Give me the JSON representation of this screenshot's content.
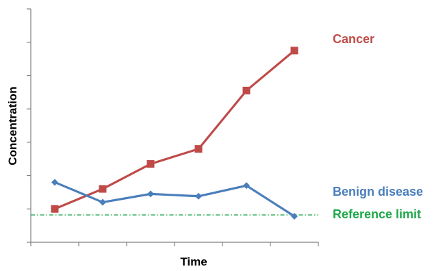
{
  "chart_data": {
    "type": "line",
    "title": "",
    "xlabel": "Time",
    "ylabel": "Concentration",
    "x": [
      1,
      2,
      3,
      4,
      5,
      6
    ],
    "xlim": [
      0.5,
      6.5
    ],
    "ylim": [
      0,
      7
    ],
    "grid": false,
    "legend": "inline labels at right",
    "series": [
      {
        "name": "Cancer",
        "color": "#be4b48",
        "marker": "square",
        "values": [
          1.0,
          1.6,
          2.35,
          2.8,
          4.55,
          5.75
        ]
      },
      {
        "name": "Benign disease",
        "color": "#4a7ebb",
        "marker": "diamond",
        "values": [
          1.8,
          1.2,
          1.45,
          1.38,
          1.7,
          0.78
        ]
      }
    ],
    "reference": {
      "name": "Reference limit",
      "color": "#1fa84a",
      "style": "dash-dot",
      "value": 0.82
    }
  }
}
